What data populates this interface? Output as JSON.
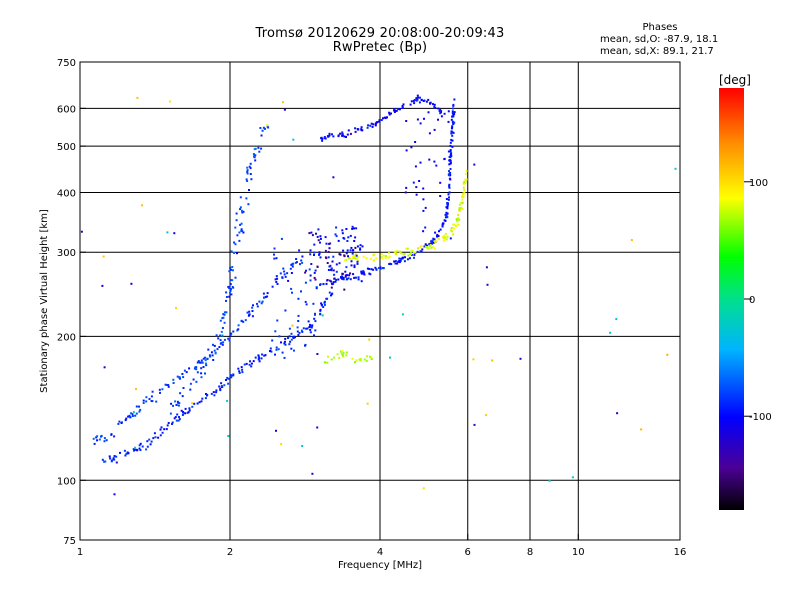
{
  "header": {
    "title_line1": "Tromsø 20120629 20:08:00-20:09:43",
    "title_line2": "RwPretec (Bp)",
    "phase_title": "Phases",
    "phase_o": "mean, sd,O: -87.9, 18.1",
    "phase_x": "mean, sd,X:  89.1, 21.7"
  },
  "chart_data": {
    "type": "scatter",
    "title": "Tromsø 20120629 20:08:00-20:09:43",
    "subtitle": "RwPretec (Bp)",
    "xlabel": "Frequency [MHz]",
    "ylabel": "Stationary phase Virtual Height [km]",
    "x_scale": "log",
    "y_scale": "log",
    "xlim": [
      1,
      16
    ],
    "ylim": [
      75,
      750
    ],
    "x_ticks": [
      1,
      2,
      4,
      6,
      8,
      10,
      16
    ],
    "x_tick_labels": [
      "1",
      "2",
      "4",
      "6",
      "8",
      "10",
      "16"
    ],
    "x_grid": [
      2,
      4,
      6,
      8,
      10
    ],
    "y_ticks": [
      75,
      100,
      200,
      300,
      400,
      500,
      600,
      750
    ],
    "y_tick_labels": [
      "75",
      "100",
      "200",
      "300",
      "400",
      "500",
      "600",
      "750"
    ],
    "y_grid": [
      100,
      200,
      300,
      400,
      500,
      600
    ],
    "grid": true,
    "colorbar": {
      "label": "[deg]",
      "range": [
        -180,
        180
      ],
      "ticks": [
        100,
        0,
        -100
      ],
      "tick_labels": [
        "100",
        "0",
        "-100"
      ]
    },
    "series": [
      {
        "type": "curve",
        "phase": -90,
        "spread": 0.012,
        "jitter": 0.03,
        "density": 6,
        "points": [
          [
            1.1,
            110
          ],
          [
            1.2,
            112
          ],
          [
            1.35,
            118
          ],
          [
            1.5,
            130
          ],
          [
            1.65,
            140
          ],
          [
            1.8,
            150
          ],
          [
            1.95,
            160
          ],
          [
            2.1,
            170
          ],
          [
            2.3,
            180
          ],
          [
            2.5,
            190
          ],
          [
            2.7,
            200
          ],
          [
            2.9,
            210
          ],
          [
            3.0,
            220
          ],
          [
            3.1,
            235
          ],
          [
            3.2,
            248
          ]
        ]
      },
      {
        "type": "curve",
        "phase": -85,
        "spread": 0.02,
        "jitter": 0.035,
        "density": 5,
        "points": [
          [
            1.05,
            120
          ],
          [
            1.15,
            125
          ],
          [
            1.3,
            140
          ],
          [
            1.45,
            155
          ],
          [
            1.6,
            165
          ],
          [
            1.8,
            180
          ],
          [
            2.0,
            200
          ],
          [
            2.2,
            225
          ],
          [
            2.4,
            250
          ],
          [
            2.6,
            275
          ],
          [
            2.8,
            290
          ]
        ]
      },
      {
        "type": "curve",
        "phase": -80,
        "spread": 0.03,
        "jitter": 0.04,
        "density": 4,
        "points": [
          [
            1.5,
            140
          ],
          [
            1.7,
            160
          ],
          [
            1.9,
            200
          ],
          [
            2.0,
            250
          ],
          [
            2.05,
            300
          ],
          [
            2.1,
            350
          ],
          [
            2.15,
            400
          ],
          [
            2.2,
            450
          ],
          [
            2.3,
            520
          ],
          [
            2.4,
            560
          ]
        ]
      },
      {
        "type": "curve",
        "phase": -95,
        "spread": 0.008,
        "jitter": 0.02,
        "density": 7,
        "points": [
          [
            3.0,
            255
          ],
          [
            3.3,
            262
          ],
          [
            3.6,
            268
          ],
          [
            4.0,
            278
          ],
          [
            4.4,
            288
          ],
          [
            4.8,
            300
          ],
          [
            5.1,
            315
          ],
          [
            5.3,
            335
          ],
          [
            5.45,
            360
          ],
          [
            5.5,
            420
          ],
          [
            5.55,
            480
          ],
          [
            5.6,
            550
          ],
          [
            5.62,
            630
          ]
        ]
      },
      {
        "type": "curve",
        "phase": -100,
        "spread": 0.008,
        "jitter": 0.02,
        "density": 7,
        "points": [
          [
            3.0,
            520
          ],
          [
            3.3,
            525
          ],
          [
            3.6,
            540
          ],
          [
            3.9,
            555
          ],
          [
            4.2,
            585
          ],
          [
            4.5,
            610
          ],
          [
            4.8,
            630
          ],
          [
            5.0,
            620
          ],
          [
            5.2,
            600
          ],
          [
            5.4,
            580
          ]
        ]
      },
      {
        "type": "curve",
        "phase": 80,
        "spread": 0.012,
        "jitter": 0.03,
        "density": 7,
        "points": [
          [
            3.4,
            290
          ],
          [
            3.8,
            292
          ],
          [
            4.2,
            295
          ],
          [
            4.6,
            300
          ],
          [
            5.0,
            308
          ],
          [
            5.3,
            318
          ],
          [
            5.55,
            330
          ],
          [
            5.7,
            345
          ],
          [
            5.8,
            370
          ],
          [
            5.9,
            400
          ],
          [
            5.95,
            440
          ]
        ]
      },
      {
        "type": "curve",
        "phase": 70,
        "spread": 0.02,
        "jitter": 0.03,
        "density": 5,
        "points": [
          [
            3.1,
            175
          ],
          [
            3.2,
            182
          ],
          [
            3.35,
            185
          ],
          [
            3.5,
            180
          ],
          [
            3.7,
            178
          ],
          [
            3.9,
            182
          ]
        ]
      },
      {
        "type": "cloud",
        "phase": -95,
        "count": 90,
        "xr": [
          2.9,
          3.7
        ],
        "yr": [
          260,
          340
        ]
      },
      {
        "type": "cloud",
        "phase": -105,
        "count": 40,
        "xr": [
          4.5,
          5.6
        ],
        "yr": [
          320,
          600
        ]
      },
      {
        "type": "cloud",
        "phase": -85,
        "count": 50,
        "xr": [
          2.4,
          3.0
        ],
        "yr": [
          180,
          320
        ]
      },
      {
        "type": "cloud",
        "phase": -150,
        "count": 25,
        "xr": [
          2.8,
          3.6
        ],
        "yr": [
          250,
          330
        ]
      },
      {
        "type": "cloud",
        "phase": 110,
        "count": 20,
        "xr": [
          1.0,
          16.0
        ],
        "yr": [
          80,
          650
        ]
      },
      {
        "type": "cloud",
        "phase": -20,
        "count": 15,
        "xr": [
          1.0,
          16.0
        ],
        "yr": [
          80,
          650
        ]
      },
      {
        "type": "cloud",
        "phase": -120,
        "count": 20,
        "xr": [
          1.0,
          16.0
        ],
        "yr": [
          80,
          650
        ]
      }
    ]
  }
}
